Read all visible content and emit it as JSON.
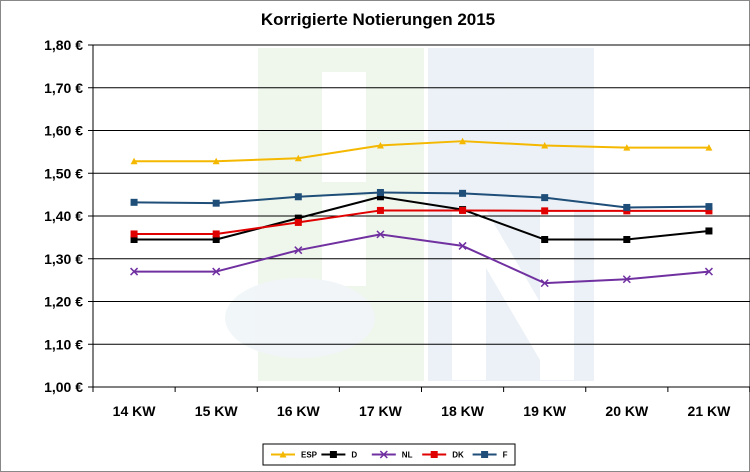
{
  "chart_data": {
    "type": "line",
    "title": "Korrigierte Notierungen 2015",
    "categories": [
      "14 KW",
      "15 KW",
      "16 KW",
      "17 KW",
      "18 KW",
      "19 KW",
      "20 KW",
      "21 KW"
    ],
    "yticks": [
      "1,00 €",
      "1,10 €",
      "1,20 €",
      "1,30 €",
      "1,40 €",
      "1,50 €",
      "1,60 €",
      "1,70 €",
      "1,80 €"
    ],
    "ylim": [
      1.0,
      1.8
    ],
    "grid": true,
    "legend_position": "bottom",
    "series": [
      {
        "name": "ESP",
        "color": "#F5B800",
        "marker": "triangle",
        "values": [
          1.528,
          1.528,
          1.535,
          1.565,
          1.575,
          1.565,
          1.56,
          1.56
        ]
      },
      {
        "name": "D",
        "color": "#000000",
        "marker": "square",
        "values": [
          1.345,
          1.345,
          1.395,
          1.445,
          1.415,
          1.345,
          1.345,
          1.365
        ]
      },
      {
        "name": "NL",
        "color": "#7030A0",
        "marker": "cross",
        "values": [
          1.27,
          1.27,
          1.32,
          1.357,
          1.33,
          1.243,
          1.252,
          1.27
        ]
      },
      {
        "name": "DK",
        "color": "#E00000",
        "marker": "square",
        "values": [
          1.358,
          1.358,
          1.385,
          1.413,
          1.413,
          1.412,
          1.412,
          1.412
        ]
      },
      {
        "name": "F",
        "color": "#1F4E79",
        "marker": "square",
        "values": [
          1.432,
          1.43,
          1.445,
          1.455,
          1.453,
          1.443,
          1.42,
          1.422
        ]
      }
    ]
  }
}
